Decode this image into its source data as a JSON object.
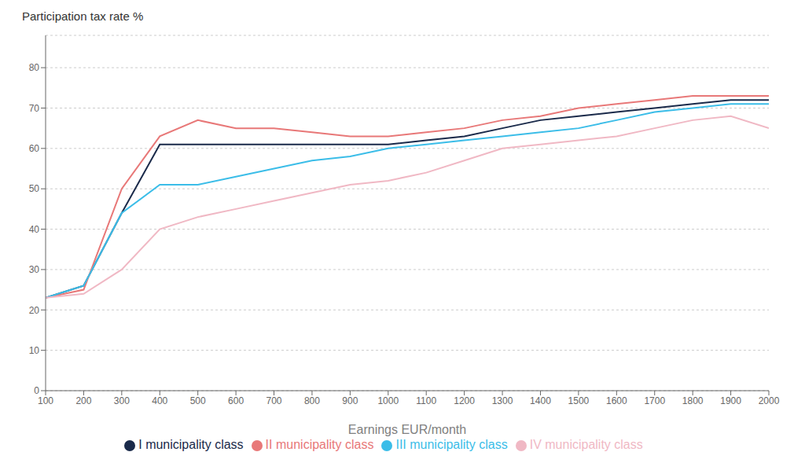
{
  "chart_data": {
    "type": "line",
    "title": "Participation tax rate %",
    "xlabel": "Earnings EUR/month",
    "x": [
      100,
      200,
      300,
      400,
      500,
      600,
      700,
      800,
      900,
      1000,
      1100,
      1200,
      1300,
      1400,
      1500,
      1600,
      1700,
      1800,
      1900,
      2000
    ],
    "series": [
      {
        "name": "I municipality class",
        "color": "#1a2a4a",
        "values": [
          23,
          26,
          44,
          61,
          61,
          61,
          61,
          61,
          61,
          61,
          62,
          63,
          65,
          67,
          68,
          69,
          70,
          71,
          72,
          72
        ]
      },
      {
        "name": "II municipality class",
        "color": "#e87878",
        "values": [
          23,
          25,
          50,
          63,
          67,
          65,
          65,
          64,
          63,
          63,
          64,
          65,
          67,
          68,
          70,
          71,
          72,
          73,
          73,
          73
        ]
      },
      {
        "name": "III municipality class",
        "color": "#3bbde8",
        "values": [
          23,
          26,
          44,
          51,
          51,
          53,
          55,
          57,
          58,
          60,
          61,
          62,
          63,
          64,
          65,
          67,
          69,
          70,
          71,
          71
        ]
      },
      {
        "name": "IV municipality class",
        "color": "#f0b8c4",
        "values": [
          23,
          24,
          30,
          40,
          43,
          45,
          47,
          49,
          51,
          52,
          54,
          57,
          60,
          61,
          62,
          63,
          65,
          67,
          68,
          65
        ]
      }
    ],
    "xlim": [
      100,
      2000
    ],
    "xticks": [
      100,
      200,
      300,
      400,
      500,
      600,
      700,
      800,
      900,
      1000,
      1100,
      1200,
      1300,
      1400,
      1500,
      1600,
      1700,
      1800,
      1900,
      2000
    ],
    "ylim": [
      0,
      88
    ],
    "yticks": [
      0,
      10,
      20,
      30,
      40,
      50,
      60,
      70,
      80
    ],
    "grid": "y",
    "legend": "bottom"
  }
}
